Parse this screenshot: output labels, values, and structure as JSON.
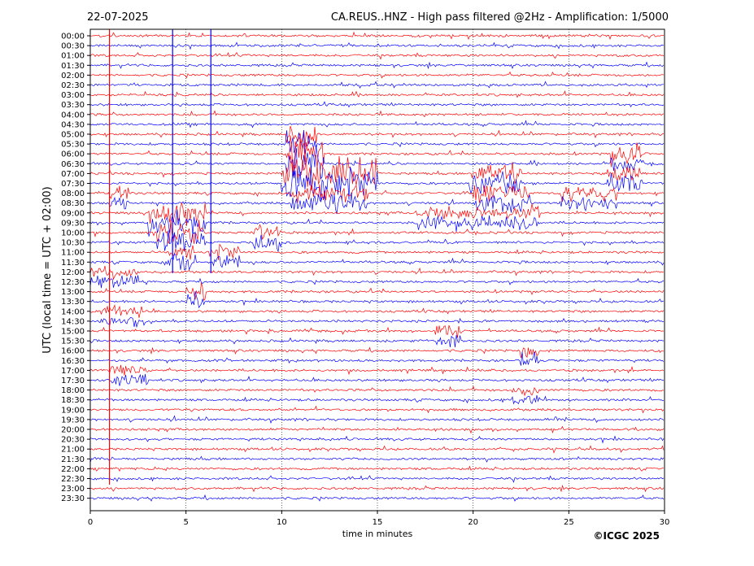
{
  "header": {
    "date": "22-07-2025",
    "title": "CA.REUS..HNZ - High pass filtered @2Hz - Amplification: 1/5000"
  },
  "footer": {
    "copyright": "©ICGC 2025"
  },
  "chart_data": {
    "type": "line",
    "xlabel": "time in minutes",
    "ylabel": "UTC (local time = UTC + 02:00)",
    "xlim": [
      0,
      30
    ],
    "xticks": [
      "0",
      "5",
      "10",
      "15",
      "20",
      "25",
      "30"
    ],
    "vertical_gridlines": [
      5,
      10,
      15,
      20,
      25
    ],
    "grid": "dotted vertical",
    "series_colors": [
      "#ff0000",
      "#0000ff"
    ],
    "rows": [
      "00:00",
      "00:30",
      "01:00",
      "01:30",
      "02:00",
      "02:30",
      "03:00",
      "03:30",
      "04:00",
      "04:30",
      "05:00",
      "05:30",
      "06:00",
      "06:30",
      "07:00",
      "07:30",
      "08:00",
      "08:30",
      "09:00",
      "09:30",
      "10:00",
      "10:30",
      "11:00",
      "11:30",
      "12:00",
      "12:30",
      "13:00",
      "13:30",
      "14:00",
      "14:30",
      "15:00",
      "15:30",
      "16:00",
      "16:30",
      "17:00",
      "17:30",
      "18:00",
      "18:30",
      "19:00",
      "19:30",
      "20:00",
      "20:30",
      "21:00",
      "21:30",
      "22:00",
      "22:30",
      "23:00",
      "23:30"
    ]
  }
}
